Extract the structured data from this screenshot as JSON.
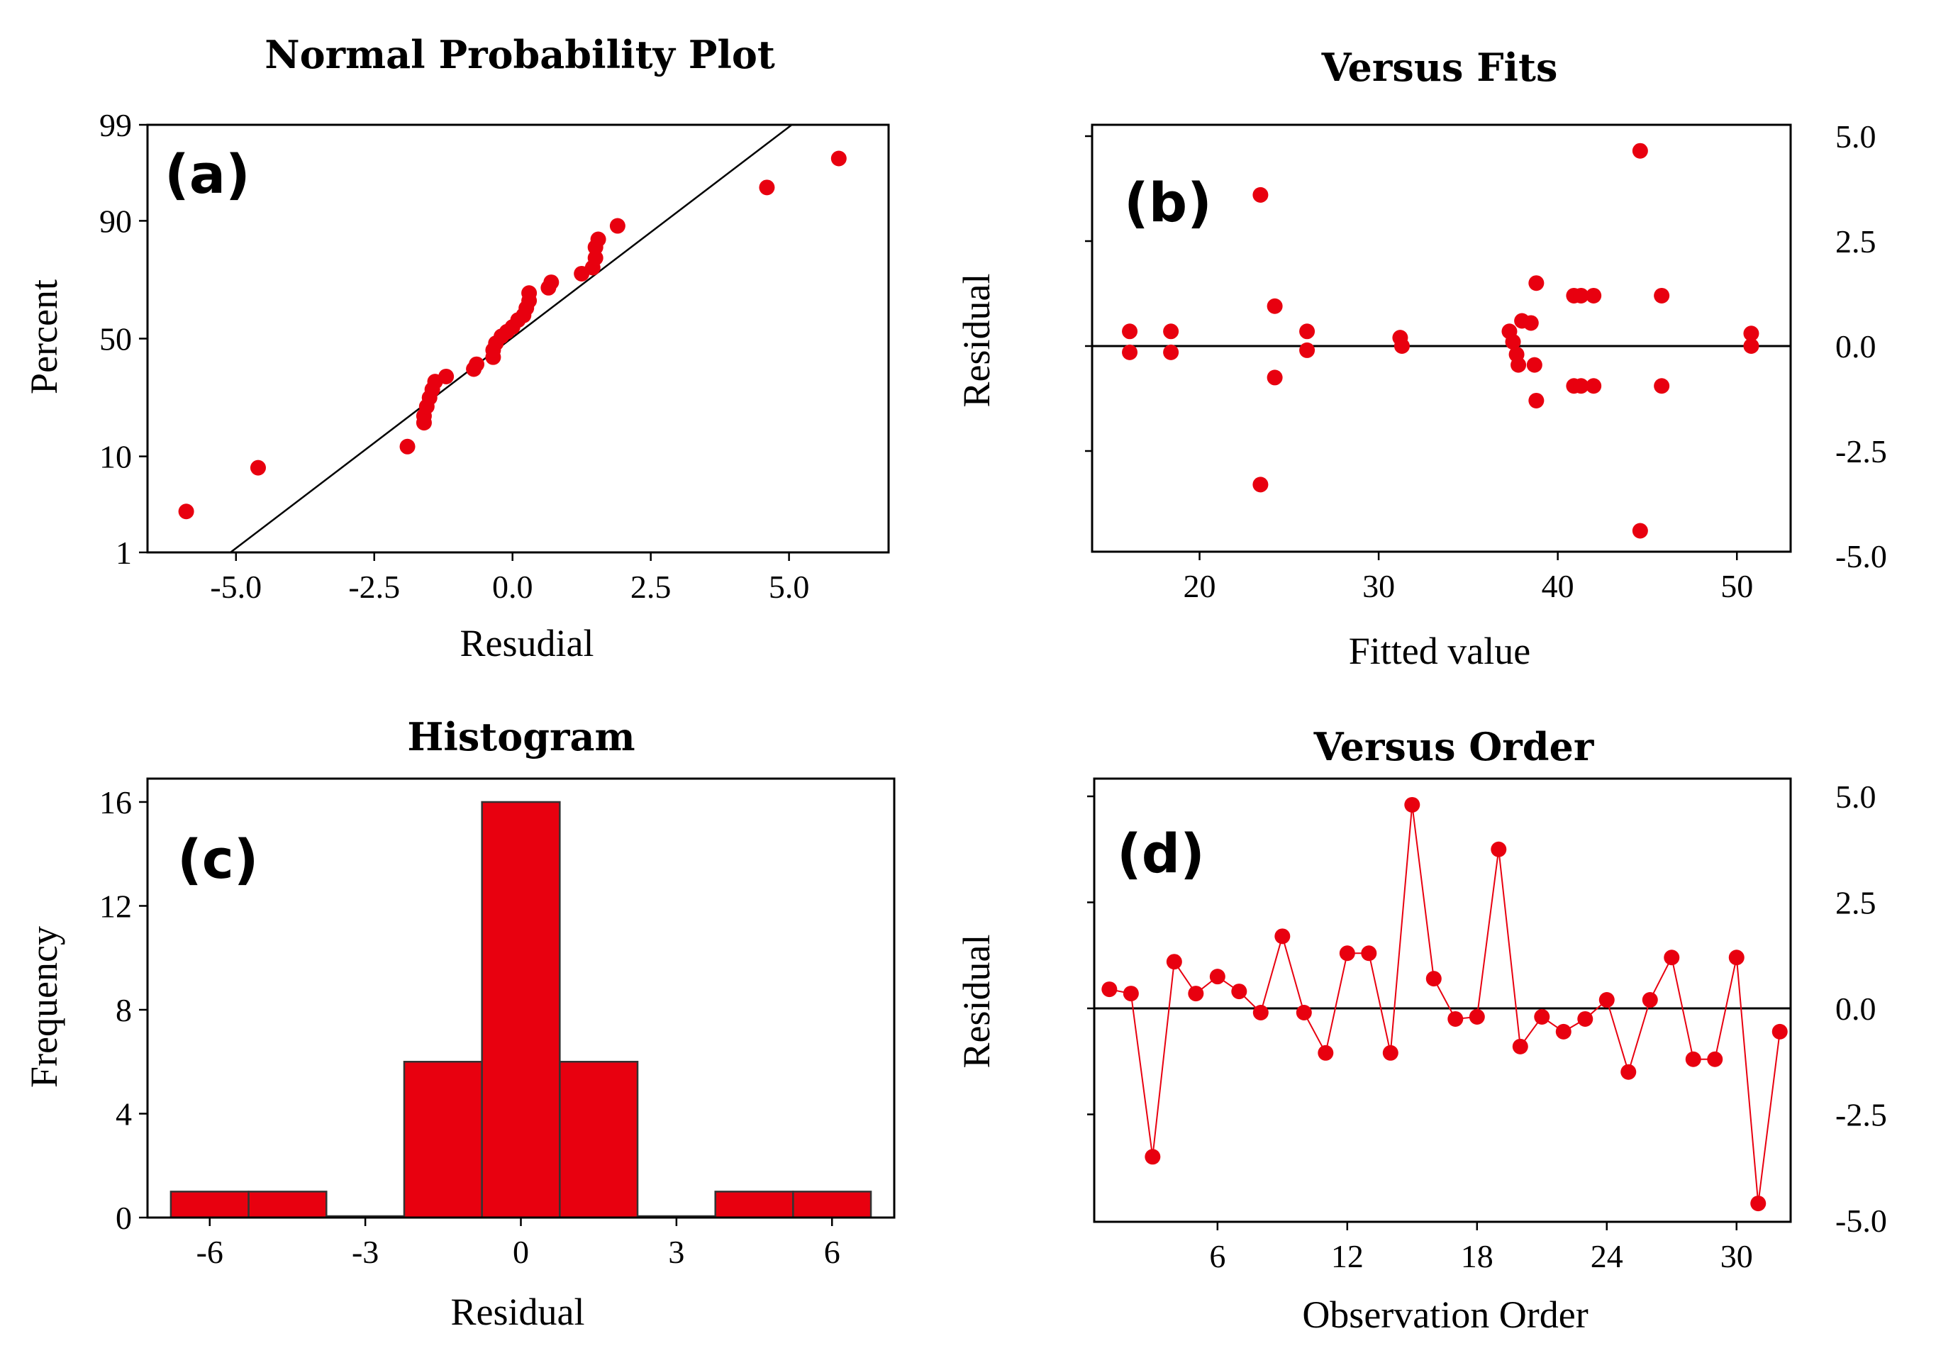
{
  "chart_data": [
    {
      "panel": "(a)",
      "type": "scatter",
      "title": "Normal Probability Plot",
      "xlabel": "Resudial",
      "ylabel": "Percent",
      "xticks": [
        "-5.0",
        "-2.5",
        "0.0",
        "2.5",
        "5.0"
      ],
      "yticks": [
        "1",
        "10",
        "50",
        "90",
        "99"
      ],
      "xlim": [
        -6.6,
        6.8
      ],
      "ylim": [
        1,
        99
      ],
      "y_scale": "normal probability",
      "fit_line": [
        [
          -5.1,
          1
        ],
        [
          5.05,
          99
        ]
      ],
      "color": "#e8000f",
      "points": [
        [
          -5.9,
          3
        ],
        [
          -4.6,
          8
        ],
        [
          -1.9,
          12
        ],
        [
          -1.6,
          18
        ],
        [
          -1.6,
          20
        ],
        [
          -1.55,
          23
        ],
        [
          -1.5,
          26
        ],
        [
          -1.45,
          29
        ],
        [
          -1.4,
          32
        ],
        [
          -1.2,
          34
        ],
        [
          -0.7,
          37
        ],
        [
          -0.65,
          39
        ],
        [
          -0.35,
          42
        ],
        [
          -0.35,
          45
        ],
        [
          -0.3,
          48
        ],
        [
          -0.2,
          51
        ],
        [
          -0.1,
          53
        ],
        [
          0.0,
          55
        ],
        [
          0.1,
          58
        ],
        [
          0.2,
          60
        ],
        [
          0.25,
          63
        ],
        [
          0.3,
          66
        ],
        [
          0.3,
          69
        ],
        [
          0.65,
          71
        ],
        [
          0.7,
          73
        ],
        [
          1.25,
          76
        ],
        [
          1.45,
          78
        ],
        [
          1.5,
          81
        ],
        [
          1.5,
          84
        ],
        [
          1.55,
          86
        ],
        [
          1.9,
          89
        ],
        [
          4.6,
          95
        ],
        [
          5.9,
          97.5
        ]
      ]
    },
    {
      "panel": "(b)",
      "type": "scatter",
      "title": "Versus Fits",
      "xlabel": "Fitted value",
      "ylabel": "Residual",
      "xticks": [
        "20",
        "30",
        "40",
        "50"
      ],
      "yticks": [
        "5.0",
        "2.5",
        "0.0",
        "-2.5",
        "-5.0"
      ],
      "xlim": [
        14,
        53
      ],
      "ylim": [
        -5.0,
        5.0
      ],
      "reference_line": 0,
      "color": "#e8000f",
      "points": [
        [
          16.1,
          0.35
        ],
        [
          16.1,
          -0.15
        ],
        [
          18.4,
          0.35
        ],
        [
          18.4,
          -0.15
        ],
        [
          23.4,
          3.6
        ],
        [
          23.4,
          -3.3
        ],
        [
          24.2,
          0.95
        ],
        [
          24.2,
          -0.75
        ],
        [
          26.0,
          0.35
        ],
        [
          26.0,
          -0.1
        ],
        [
          31.2,
          0.2
        ],
        [
          31.3,
          0.0
        ],
        [
          37.3,
          0.35
        ],
        [
          37.5,
          0.1
        ],
        [
          37.7,
          -0.2
        ],
        [
          37.8,
          -0.45
        ],
        [
          38.0,
          0.6
        ],
        [
          38.5,
          0.55
        ],
        [
          38.7,
          -0.45
        ],
        [
          38.8,
          1.5
        ],
        [
          38.8,
          -1.3
        ],
        [
          40.9,
          1.2
        ],
        [
          41.3,
          1.2
        ],
        [
          42.0,
          1.2
        ],
        [
          40.9,
          -0.95
        ],
        [
          41.3,
          -0.95
        ],
        [
          42.0,
          -0.95
        ],
        [
          44.6,
          4.65
        ],
        [
          44.6,
          -4.4
        ],
        [
          45.8,
          1.2
        ],
        [
          45.8,
          -0.95
        ],
        [
          50.8,
          0.3
        ],
        [
          50.8,
          0.0
        ]
      ]
    },
    {
      "panel": "(c)",
      "type": "bar",
      "title": "Histogram",
      "xlabel": "Residual",
      "ylabel": "Frequency",
      "xticks": [
        "-6",
        "-3",
        "0",
        "3",
        "6"
      ],
      "yticks": [
        "0",
        "4",
        "8",
        "12",
        "16"
      ],
      "xlim": [
        -7.2,
        7.2
      ],
      "ylim": [
        0,
        16.9
      ],
      "color": "#e8000f",
      "bin_centers": [
        -6,
        -4.5,
        -3,
        -1.5,
        0,
        1.5,
        3,
        4.5,
        6
      ],
      "bin_width": 1.5,
      "values": [
        1,
        1,
        0,
        6,
        16,
        6,
        0,
        1,
        1
      ]
    },
    {
      "panel": "(d)",
      "type": "line",
      "title": "Versus Order",
      "xlabel": "Observation Order",
      "ylabel": "Residual",
      "xticks": [
        "6",
        "12",
        "18",
        "24",
        "30"
      ],
      "yticks": [
        "5.0",
        "2.5",
        "0.0",
        "-2.5",
        "-5.0"
      ],
      "xlim": [
        0.3,
        32.5
      ],
      "ylim": [
        -5.2,
        5.2
      ],
      "reference_line": 0,
      "color": "#e8000f",
      "x": [
        1,
        2,
        3,
        4,
        5,
        6,
        7,
        8,
        9,
        10,
        11,
        12,
        13,
        14,
        15,
        16,
        17,
        18,
        19,
        20,
        21,
        22,
        23,
        24,
        25,
        26,
        27,
        28,
        29,
        30,
        31,
        32
      ],
      "y": [
        0.45,
        0.35,
        -3.5,
        1.1,
        0.35,
        0.75,
        0.4,
        -0.1,
        1.7,
        -0.1,
        -1.05,
        1.3,
        1.3,
        -1.05,
        4.8,
        0.7,
        -0.25,
        -0.2,
        3.75,
        -0.9,
        -0.2,
        -0.55,
        -0.25,
        0.2,
        -1.5,
        0.2,
        1.2,
        -1.2,
        -1.2,
        1.2,
        -4.6,
        -0.55
      ]
    }
  ]
}
